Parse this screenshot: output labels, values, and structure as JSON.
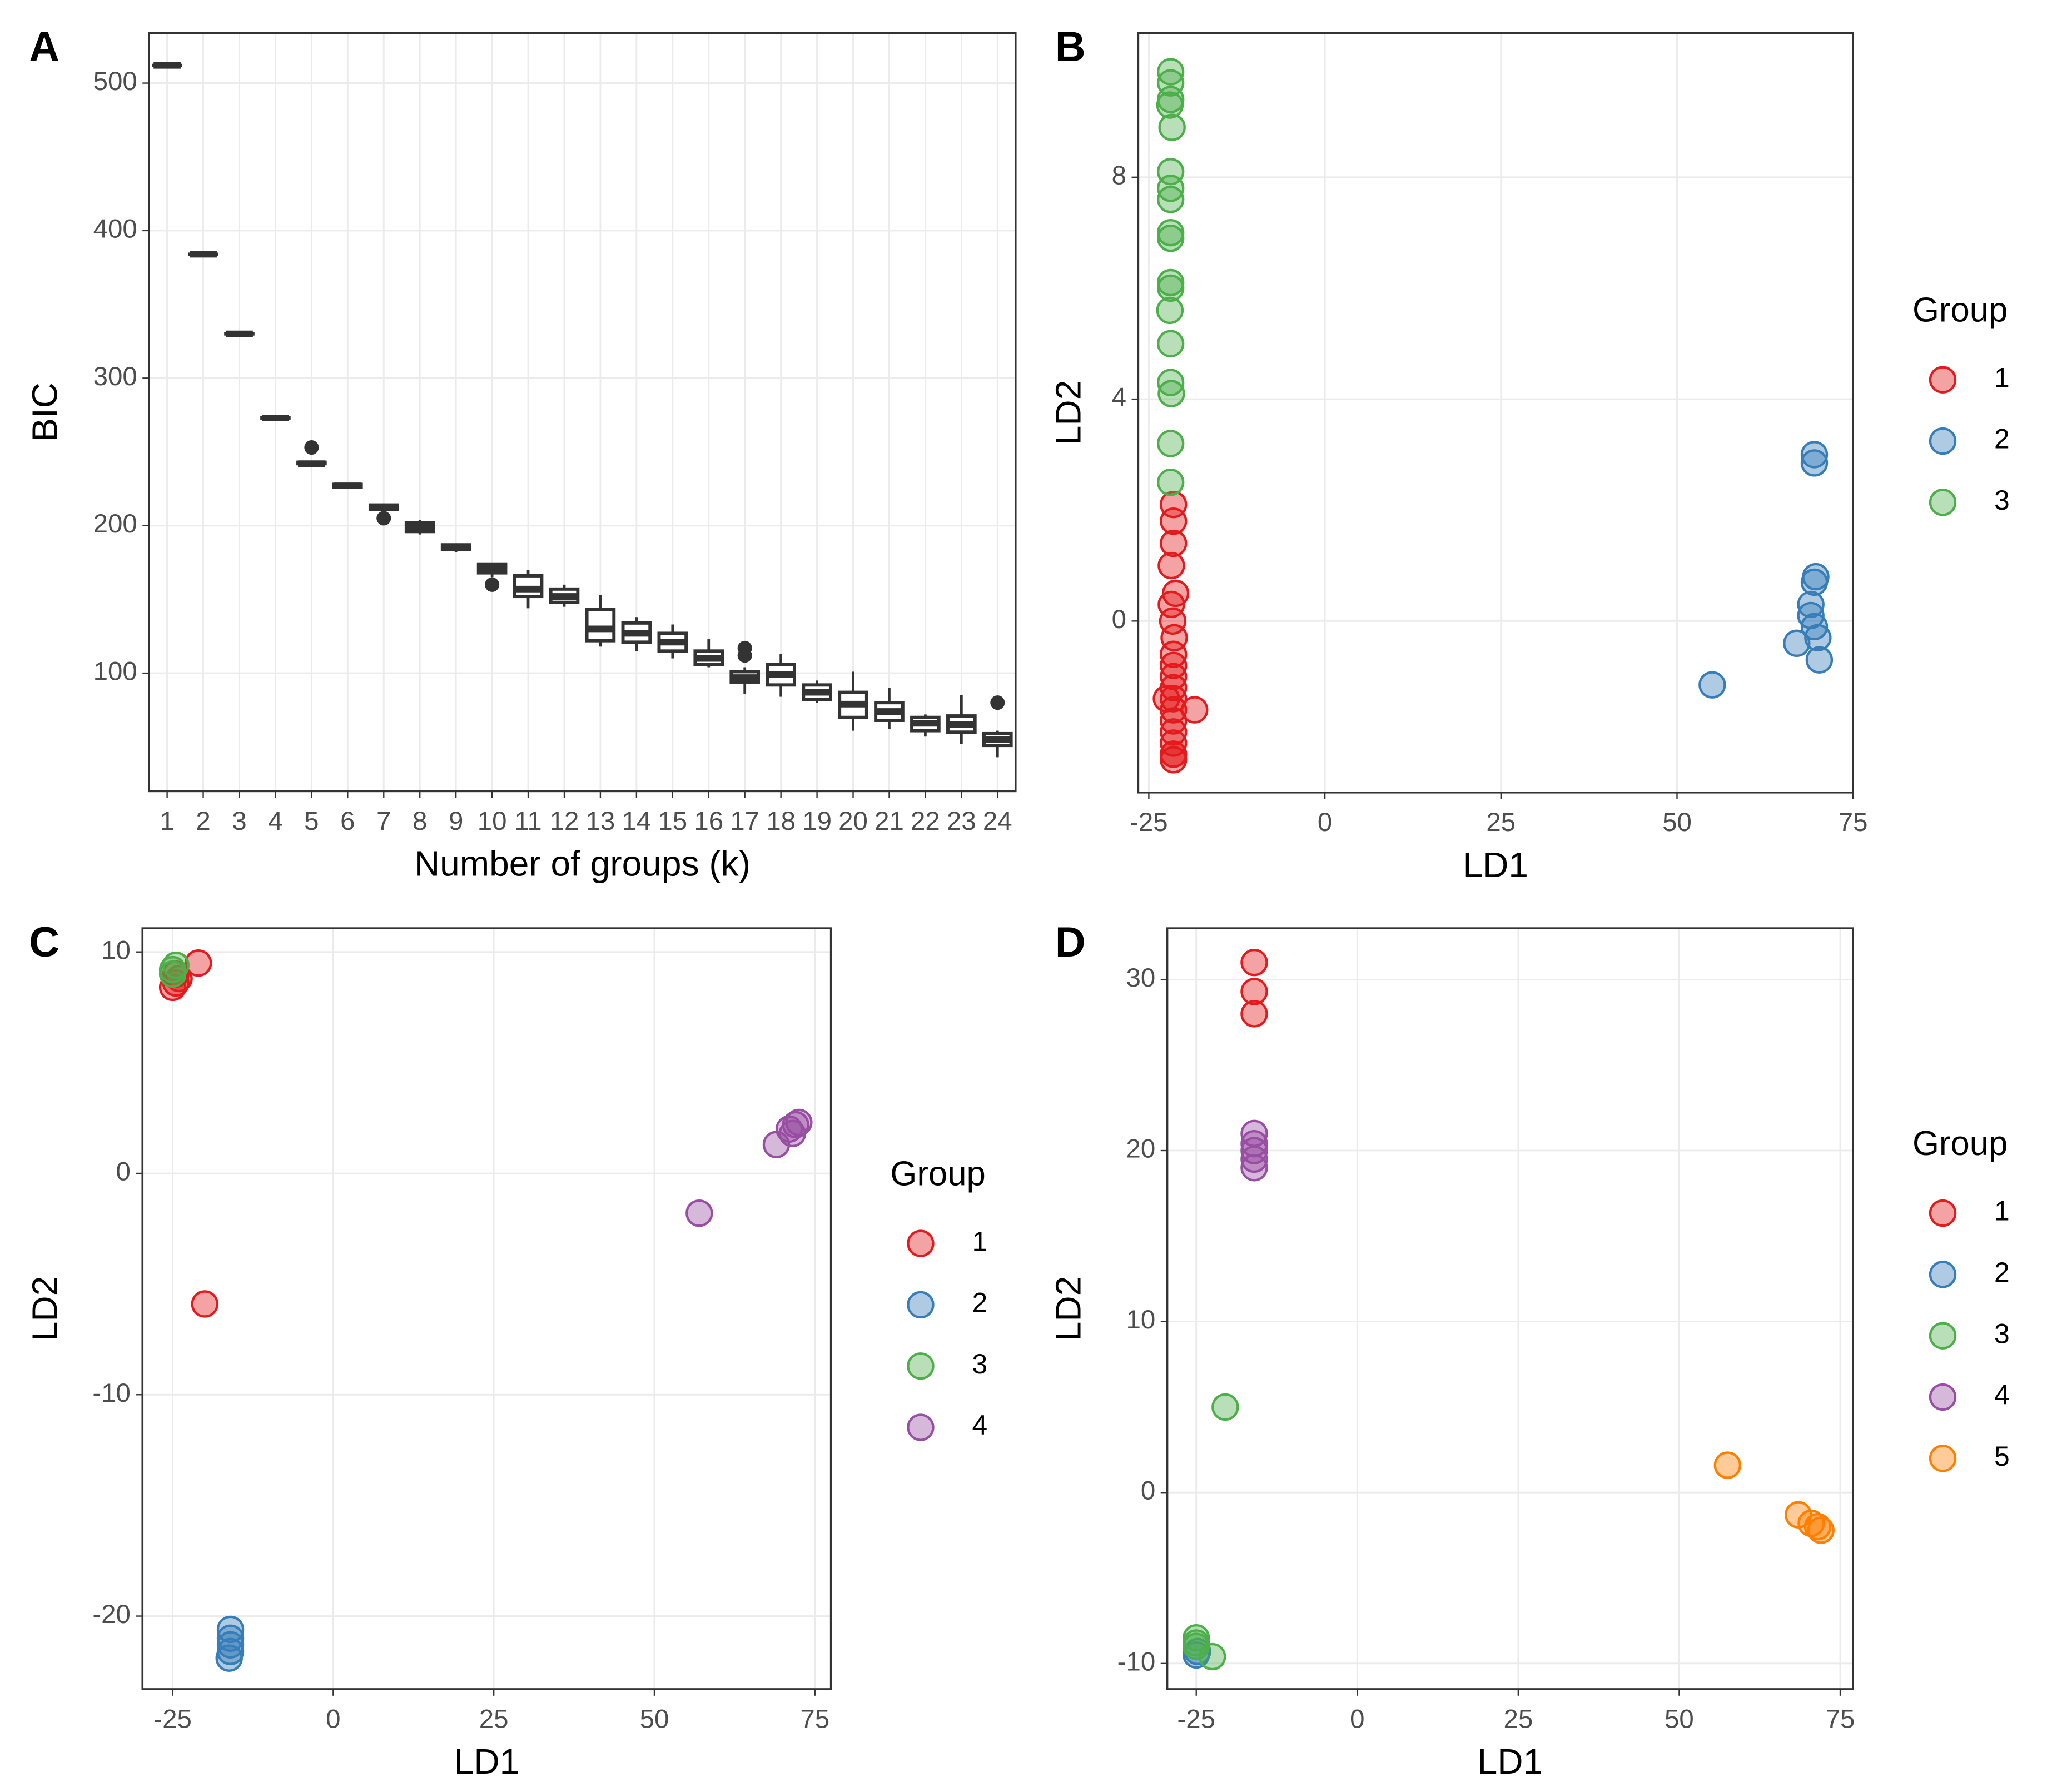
{
  "chart_data": [
    {
      "type": "box",
      "panel": "A",
      "xlabel": "Number of groups (k)",
      "ylabel": "BIC",
      "categories": [
        "1",
        "2",
        "3",
        "4",
        "5",
        "6",
        "7",
        "8",
        "9",
        "10",
        "11",
        "12",
        "13",
        "14",
        "15",
        "16",
        "17",
        "18",
        "19",
        "20",
        "21",
        "22",
        "23",
        "24"
      ],
      "boxes": [
        {
          "min": 512,
          "q1": 512,
          "median": 512,
          "q3": 512,
          "max": 512,
          "outliers": []
        },
        {
          "min": 384,
          "q1": 384,
          "median": 384,
          "q3": 384,
          "max": 384,
          "outliers": []
        },
        {
          "min": 330,
          "q1": 330,
          "median": 330,
          "q3": 330,
          "max": 330,
          "outliers": []
        },
        {
          "min": 273,
          "q1": 273,
          "median": 273,
          "q3": 273,
          "max": 273,
          "outliers": []
        },
        {
          "min": 242,
          "q1": 242,
          "median": 242,
          "q3": 243,
          "max": 243,
          "outliers": [
            253
          ]
        },
        {
          "min": 226,
          "q1": 226,
          "median": 227,
          "q3": 228,
          "max": 228,
          "outliers": []
        },
        {
          "min": 211,
          "q1": 211,
          "median": 212,
          "q3": 214,
          "max": 215,
          "outliers": [
            205
          ]
        },
        {
          "min": 194,
          "q1": 196,
          "median": 199,
          "q3": 202,
          "max": 204,
          "outliers": []
        },
        {
          "min": 182,
          "q1": 184,
          "median": 185,
          "q3": 187,
          "max": 187,
          "outliers": []
        },
        {
          "min": 165,
          "q1": 168,
          "median": 171,
          "q3": 174,
          "max": 175,
          "outliers": [
            160
          ]
        },
        {
          "min": 144,
          "q1": 152,
          "median": 157,
          "q3": 166,
          "max": 170,
          "outliers": []
        },
        {
          "min": 145,
          "q1": 148,
          "median": 152,
          "q3": 157,
          "max": 160,
          "outliers": []
        },
        {
          "min": 118,
          "q1": 122,
          "median": 130,
          "q3": 143,
          "max": 153,
          "outliers": []
        },
        {
          "min": 115,
          "q1": 121,
          "median": 127,
          "q3": 134,
          "max": 138,
          "outliers": []
        },
        {
          "min": 110,
          "q1": 115,
          "median": 121,
          "q3": 127,
          "max": 133,
          "outliers": []
        },
        {
          "min": 104,
          "q1": 106,
          "median": 110,
          "q3": 115,
          "max": 123,
          "outliers": []
        },
        {
          "min": 86,
          "q1": 94,
          "median": 97,
          "q3": 101,
          "max": 104,
          "outliers": [
            112,
            117
          ]
        },
        {
          "min": 84,
          "q1": 92,
          "median": 99,
          "q3": 106,
          "max": 113,
          "outliers": []
        },
        {
          "min": 80,
          "q1": 82,
          "median": 87,
          "q3": 92,
          "max": 95,
          "outliers": []
        },
        {
          "min": 61,
          "q1": 70,
          "median": 79,
          "q3": 87,
          "max": 101,
          "outliers": []
        },
        {
          "min": 62,
          "q1": 68,
          "median": 74,
          "q3": 80,
          "max": 90,
          "outliers": []
        },
        {
          "min": 57,
          "q1": 61,
          "median": 66,
          "q3": 70,
          "max": 72,
          "outliers": []
        },
        {
          "min": 52,
          "q1": 60,
          "median": 65,
          "q3": 71,
          "max": 85,
          "outliers": []
        },
        {
          "min": 43,
          "q1": 51,
          "median": 55,
          "q3": 59,
          "max": 61,
          "outliers": [
            80
          ]
        }
      ],
      "ylim": [
        20,
        534
      ],
      "yticks": [
        100,
        200,
        300,
        400,
        500
      ],
      "grid": true
    },
    {
      "type": "scatter",
      "panel": "B",
      "xlabel": "LD1",
      "ylabel": "LD2",
      "legend_title": "Group",
      "xlim": [
        -26.5,
        75
      ],
      "xticks": [
        -25,
        0,
        25,
        50,
        75
      ],
      "ylim": [
        -3.09,
        10.6
      ],
      "yticks": [
        0,
        4,
        8
      ],
      "grid": true,
      "series": [
        {
          "name": "1",
          "color": "#e41a1c",
          "x": [
            -21.5,
            -21.5,
            -21.5,
            -21.8,
            -21.2,
            -21.8,
            -21.6,
            -21.4,
            -21.5,
            -21.5,
            -21.5,
            -21.5,
            -21.5,
            -21.5,
            -21.5,
            -21.5,
            -21.5,
            -21.5,
            -21.5,
            -21.5,
            -18.5,
            -22.5
          ],
          "y": [
            2.1,
            1.8,
            1.4,
            1.0,
            0.5,
            0.3,
            0,
            -0.3,
            -0.6,
            -0.8,
            -1.0,
            -1.2,
            -1.4,
            -1.6,
            -1.8,
            -2.0,
            -2.2,
            -2.4,
            -2.5,
            -2.4,
            -1.6,
            -1.4
          ]
        },
        {
          "name": "2",
          "color": "#377eb8",
          "x": [
            69.5,
            69.5,
            69.7,
            69.5,
            69,
            69,
            69.5,
            70,
            70.2,
            67,
            55
          ],
          "y": [
            3.0,
            2.85,
            0.8,
            0.7,
            0.3,
            0.1,
            -0.1,
            -0.3,
            -0.7,
            -0.4,
            -1.15
          ]
        },
        {
          "name": "3",
          "color": "#4daf4a",
          "x": [
            -21.9,
            -21.9,
            -21.9,
            -22.0,
            -21.7,
            -21.9,
            -21.9,
            -21.9,
            -21.9,
            -21.9,
            -21.9,
            -21.9,
            -22.0,
            -21.9,
            -21.9,
            -21.8,
            -21.9,
            -21.9
          ],
          "y": [
            9.9,
            9.7,
            9.4,
            9.3,
            8.9,
            8.1,
            7.8,
            7.6,
            7.0,
            6.9,
            6.1,
            6.0,
            5.6,
            5.0,
            4.3,
            4.1,
            3.2,
            2.5
          ]
        }
      ]
    },
    {
      "type": "scatter",
      "panel": "C",
      "xlabel": "LD1",
      "ylabel": "LD2",
      "legend_title": "Group",
      "xlim": [
        -29.7,
        77.5
      ],
      "xticks": [
        -25,
        0,
        25,
        50,
        75
      ],
      "ylim": [
        -23.3,
        11.07
      ],
      "yticks": [
        -20,
        -10,
        0,
        10
      ],
      "grid": true,
      "series": [
        {
          "name": "1",
          "color": "#e41a1c",
          "x": [
            -25,
            -24.5,
            -24.5,
            -24,
            -21,
            -20
          ],
          "y": [
            8.4,
            8.6,
            9,
            8.8,
            9.5,
            -5.9
          ]
        },
        {
          "name": "2",
          "color": "#377eb8",
          "x": [
            -16,
            -16,
            -16,
            -16,
            -16.2
          ],
          "y": [
            -20.6,
            -21,
            -21.3,
            -21.6,
            -21.9
          ]
        },
        {
          "name": "3",
          "color": "#4daf4a",
          "x": [
            -25,
            -24.5,
            -25
          ],
          "y": [
            9.2,
            9.4,
            9
          ]
        },
        {
          "name": "4",
          "color": "#984ea3",
          "x": [
            57,
            69,
            71,
            72,
            72.5,
            71.5
          ],
          "y": [
            -1.8,
            1.3,
            2,
            2.2,
            2.3,
            1.8
          ]
        }
      ]
    },
    {
      "type": "scatter",
      "panel": "D",
      "xlabel": "LD1",
      "ylabel": "LD2",
      "legend_title": "Group",
      "xlim": [
        -29.5,
        77
      ],
      "xticks": [
        -25,
        0,
        25,
        50,
        75
      ],
      "ylim": [
        -11.5,
        33
      ],
      "yticks": [
        -10,
        0,
        10,
        20,
        30
      ],
      "grid": true,
      "series": [
        {
          "name": "1",
          "color": "#e41a1c",
          "x": [
            -16,
            -16,
            -16
          ],
          "y": [
            31,
            29.3,
            28
          ]
        },
        {
          "name": "2",
          "color": "#377eb8",
          "x": [
            -25,
            -24.8
          ],
          "y": [
            -9.5,
            -9.3
          ]
        },
        {
          "name": "3",
          "color": "#4daf4a",
          "x": [
            -20.5,
            -25,
            -25,
            -22.5,
            -25
          ],
          "y": [
            5,
            -8.5,
            -9,
            -9.6,
            -8.8
          ]
        },
        {
          "name": "4",
          "color": "#984ea3",
          "x": [
            -16,
            -16,
            -16,
            -16,
            -16
          ],
          "y": [
            21,
            20.4,
            20,
            19.5,
            19
          ]
        },
        {
          "name": "5",
          "color": "#ff7f00",
          "x": [
            57.5,
            68.5,
            70.5,
            71.5,
            72
          ],
          "y": [
            1.6,
            -1.3,
            -1.8,
            -2,
            -2.2
          ]
        }
      ]
    }
  ]
}
